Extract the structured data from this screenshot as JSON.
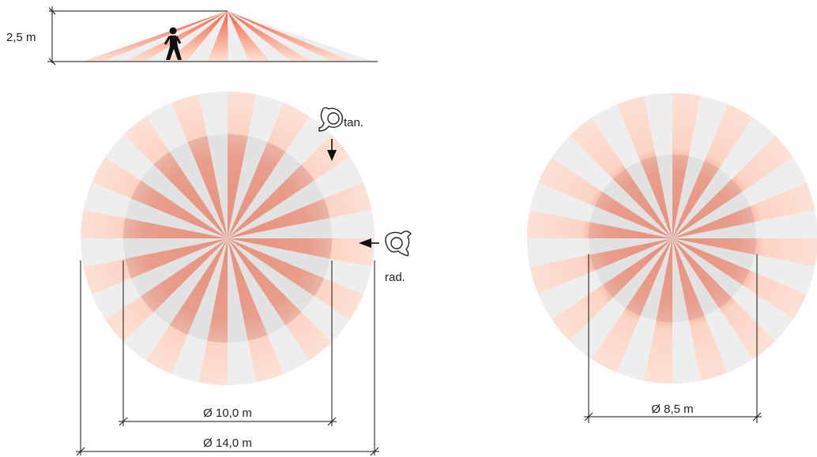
{
  "side_view": {
    "height_label": "2,5 m"
  },
  "plan_large": {
    "tangential_label": "tan.",
    "radial_label": "rad.",
    "inner_diameter_label": "Ø 10,0 m",
    "outer_diameter_label": "Ø 14,0 m"
  },
  "plan_small": {
    "diameter_label": "Ø 8,5 m"
  },
  "colors": {
    "zone_red": "#f0603f",
    "zone_pink": "#fbd4c5",
    "zone_light": "#eeeeee",
    "core_gray": "#d9d9d9",
    "line": "#111111"
  },
  "icons": [
    "person-walking-icon",
    "person-top-view-icon",
    "arrow-down-icon",
    "arrow-left-icon"
  ]
}
